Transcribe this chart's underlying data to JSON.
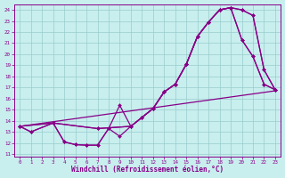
{
  "bg_color": "#c8eeee",
  "line_color": "#880088",
  "grid_color": "#99cccc",
  "xlabel": "Windchill (Refroidissement éolien,°C)",
  "xlim_min": -0.5,
  "xlim_max": 23.5,
  "ylim_min": 10.8,
  "ylim_max": 24.5,
  "xticks": [
    0,
    1,
    2,
    3,
    4,
    5,
    6,
    7,
    8,
    9,
    10,
    11,
    12,
    13,
    14,
    15,
    16,
    17,
    18,
    19,
    20,
    21,
    22,
    23
  ],
  "yticks": [
    11,
    12,
    13,
    14,
    15,
    16,
    17,
    18,
    19,
    20,
    21,
    22,
    23,
    24
  ],
  "curves": [
    {
      "x": [
        0,
        1,
        3,
        4,
        5,
        6,
        7,
        8,
        9,
        10,
        11,
        12,
        13,
        14,
        15,
        16,
        17,
        18,
        19,
        20,
        21,
        22,
        23
      ],
      "y": [
        13.5,
        13.0,
        13.8,
        12.1,
        11.85,
        11.8,
        11.8,
        13.3,
        12.6,
        13.5,
        14.3,
        15.1,
        16.6,
        17.3,
        19.1,
        21.6,
        22.9,
        24.0,
        24.2,
        24.0,
        23.5,
        18.6,
        16.8
      ]
    },
    {
      "x": [
        0,
        1,
        3,
        4,
        5,
        6,
        7,
        8,
        9,
        10,
        11,
        12,
        13,
        14,
        15,
        16,
        17,
        18,
        19,
        20,
        21,
        22,
        23
      ],
      "y": [
        13.5,
        13.0,
        13.8,
        12.1,
        11.85,
        11.8,
        11.8,
        13.3,
        15.4,
        13.5,
        14.3,
        15.1,
        16.6,
        17.3,
        19.1,
        21.6,
        22.9,
        24.0,
        24.2,
        21.3,
        19.8,
        17.3,
        16.8
      ]
    },
    {
      "x": [
        0,
        3,
        7,
        10,
        11,
        12,
        13,
        14,
        15,
        16,
        17,
        18,
        19,
        20,
        21,
        22,
        23
      ],
      "y": [
        13.5,
        13.8,
        13.3,
        13.5,
        14.3,
        15.1,
        16.6,
        17.3,
        19.1,
        21.6,
        22.9,
        24.0,
        24.2,
        24.0,
        23.5,
        18.6,
        16.8
      ]
    },
    {
      "x": [
        0,
        3,
        7,
        10,
        11,
        12,
        13,
        14,
        15,
        16,
        17,
        18,
        19,
        20,
        21,
        22,
        23
      ],
      "y": [
        13.5,
        13.8,
        13.3,
        13.5,
        14.3,
        15.1,
        16.6,
        17.3,
        19.1,
        21.6,
        22.9,
        24.0,
        24.2,
        21.3,
        19.8,
        17.3,
        16.8
      ]
    },
    {
      "x": [
        0,
        23
      ],
      "y": [
        13.5,
        16.7
      ]
    }
  ]
}
